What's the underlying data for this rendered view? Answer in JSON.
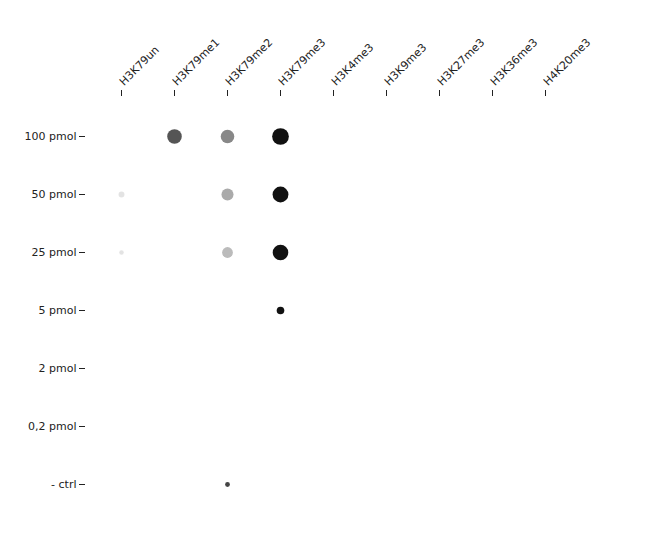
{
  "chart_data": {
    "type": "dot_matrix",
    "columns": [
      "H3K79un",
      "H3K79me1",
      "H3K79me2",
      "H3K79me3",
      "H3K4me3",
      "H3K9me3",
      "H3K27me3",
      "H3K36me3",
      "H4K20me3"
    ],
    "rows": [
      "100 pmol",
      "50 pmol",
      "25 pmol",
      "5 pmol",
      "2 pmol",
      "0,2 pmol",
      "- ctrl"
    ],
    "dots": [
      {
        "column": "H3K79me1",
        "row": "100 pmol",
        "size": 110,
        "color": "#555555"
      },
      {
        "column": "H3K79me2",
        "row": "100 pmol",
        "size": 95,
        "color": "#888888"
      },
      {
        "column": "H3K79me3",
        "row": "100 pmol",
        "size": 145,
        "color": "#111111"
      },
      {
        "column": "H3K79me2",
        "row": "50 pmol",
        "size": 75,
        "color": "#aaaaaa"
      },
      {
        "column": "H3K79me3",
        "row": "50 pmol",
        "size": 130,
        "color": "#111111"
      },
      {
        "column": "H3K79me2",
        "row": "25 pmol",
        "size": 60,
        "color": "#bbbbbb"
      },
      {
        "column": "H3K79me3",
        "row": "25 pmol",
        "size": 125,
        "color": "#111111"
      },
      {
        "column": "H3K79me3",
        "row": "5 pmol",
        "size": 30,
        "color": "#111111"
      },
      {
        "column": "H3K79me2",
        "row": "- ctrl",
        "size": 12,
        "color": "#444444"
      }
    ],
    "faint_dots": [
      {
        "column": "H3K79un",
        "row": "50 pmol",
        "size": 18,
        "color": "#cccccc"
      },
      {
        "column": "H3K79un",
        "row": "25 pmol",
        "size": 10,
        "color": "#cccccc"
      }
    ],
    "grid": false
  }
}
